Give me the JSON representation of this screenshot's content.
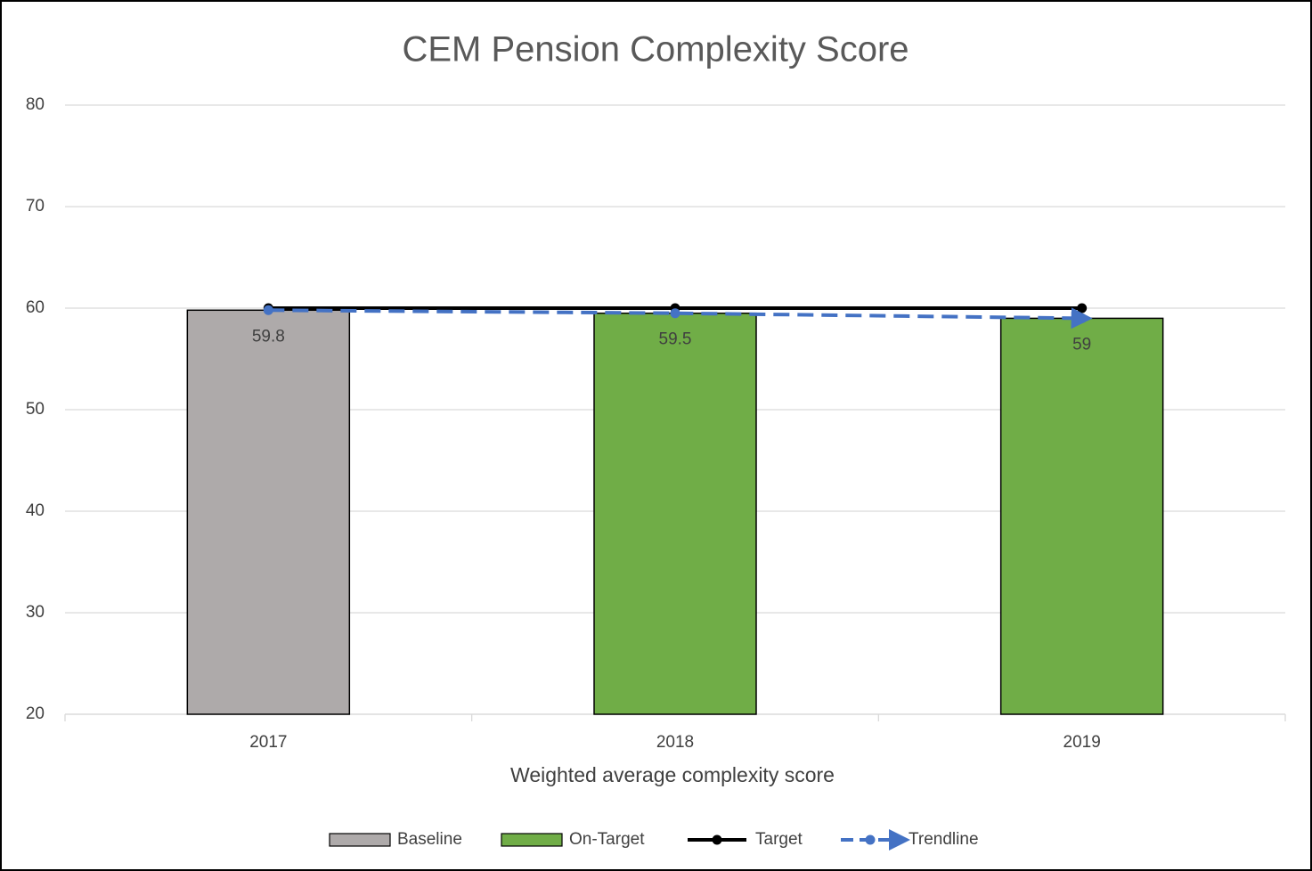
{
  "chart_data": {
    "type": "bar",
    "title": "CEM Pension Complexity Score",
    "x_label": "Weighted average complexity score",
    "categories": [
      "2017",
      "2018",
      "2019"
    ],
    "series": [
      {
        "name": "Baseline",
        "type": "bar",
        "color": "#aeaaaa",
        "values": [
          59.8,
          null,
          null
        ]
      },
      {
        "name": "On-Target",
        "type": "bar",
        "color": "#70ad47",
        "values": [
          null,
          59.5,
          59
        ]
      },
      {
        "name": "Target",
        "type": "line",
        "color": "#000000",
        "values": [
          60,
          60,
          60
        ]
      },
      {
        "name": "Trendline",
        "type": "line",
        "color": "#4472c4",
        "style": "dashed",
        "arrow": true,
        "values": [
          59.8,
          59.5,
          59
        ]
      }
    ],
    "ylim": [
      20,
      80
    ],
    "yticks": [
      20,
      30,
      40,
      50,
      60,
      70,
      80
    ],
    "grid": true,
    "legend": "bottom"
  }
}
